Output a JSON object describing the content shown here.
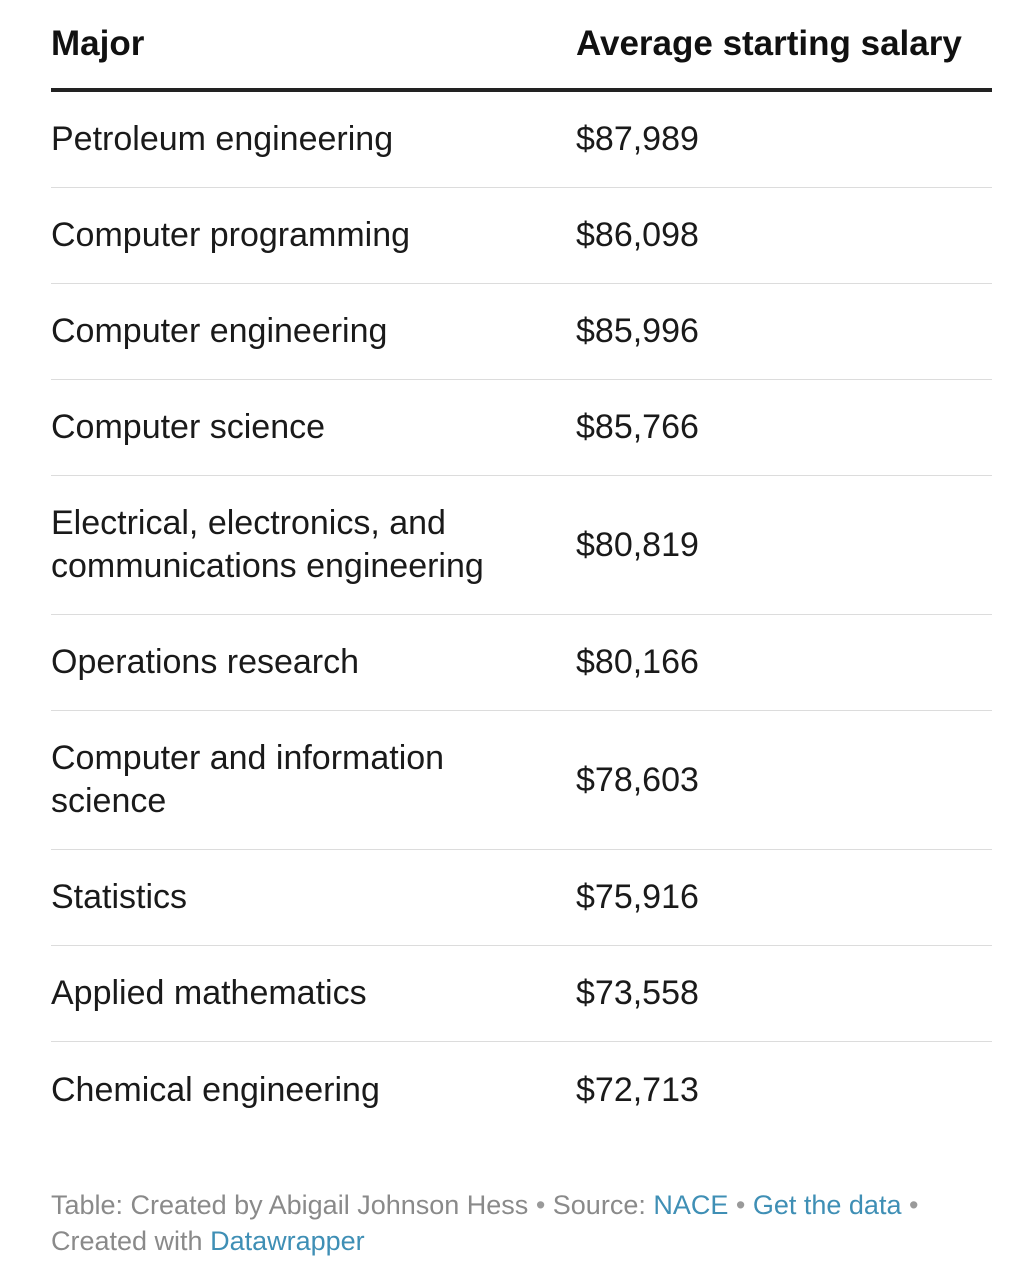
{
  "chart_data": {
    "type": "table",
    "columns": [
      "Major",
      "Average starting salary"
    ],
    "rows": [
      {
        "major": "Petroleum engineering",
        "salary": "$87,989",
        "value": 87989
      },
      {
        "major": "Computer programming",
        "salary": "$86,098",
        "value": 86098
      },
      {
        "major": "Computer engineering",
        "salary": "$85,996",
        "value": 85996
      },
      {
        "major": "Computer science",
        "salary": "$85,766",
        "value": 85766
      },
      {
        "major": "Electrical, electronics, and communications engineering",
        "salary": "$80,819",
        "value": 80819
      },
      {
        "major": "Operations research",
        "salary": "$80,166",
        "value": 80166
      },
      {
        "major": "Computer and information science",
        "salary": "$78,603",
        "value": 78603
      },
      {
        "major": "Statistics",
        "salary": "$75,916",
        "value": 75916
      },
      {
        "major": "Applied mathematics",
        "salary": "$73,558",
        "value": 73558
      },
      {
        "major": "Chemical engineering",
        "salary": "$72,713",
        "value": 72713
      }
    ]
  },
  "footer": {
    "prefix": "Table: Created by Abigail Johnson Hess",
    "source_label": "Source:",
    "source_link": "NACE",
    "get_data_link": "Get the data",
    "created_with": "Created with",
    "tool_link": "Datawrapper",
    "separator": "•"
  },
  "colors": {
    "text": "#1a1a1a",
    "header_rule": "#222222",
    "row_rule": "#dcdcdc",
    "footer_text": "#8a8a8a",
    "link": "#3f8fb5"
  }
}
